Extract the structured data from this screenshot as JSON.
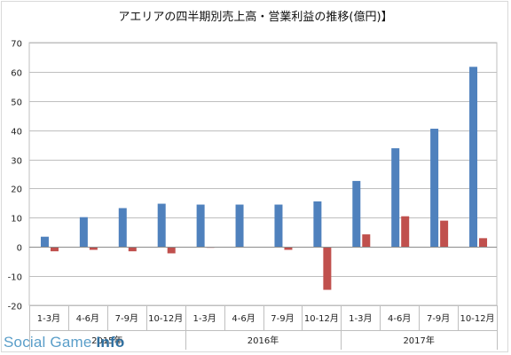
{
  "chart_data": {
    "type": "bar",
    "title": "アエリアの四半期別売上高・営業利益の推移(億円)】",
    "xlabel": "",
    "ylabel": "",
    "ylim": [
      -20,
      70
    ],
    "yticks": [
      70,
      60,
      50,
      40,
      30,
      20,
      10,
      0,
      -10,
      -20
    ],
    "grid": true,
    "legend": "none",
    "categories": [
      "1-3月",
      "4-6月",
      "7-9月",
      "10-12月",
      "1-3月",
      "4-6月",
      "7-9月",
      "10-12月",
      "1-3月",
      "4-6月",
      "7-9月",
      "10-12月"
    ],
    "year_groups": [
      {
        "label": "2015年",
        "span": 4
      },
      {
        "label": "2016年",
        "span": 4
      },
      {
        "label": "2017年",
        "span": 4
      }
    ],
    "series": [
      {
        "color": "#4f81bd",
        "values": [
          3.5,
          10.2,
          13.3,
          14.8,
          14.5,
          14.5,
          14.5,
          15.6,
          22.6,
          33.8,
          40.5,
          61.7
        ]
      },
      {
        "color": "#c0504d",
        "values": [
          -1.5,
          -1.0,
          -1.5,
          -2.2,
          -0.3,
          0.0,
          -1.0,
          -14.7,
          4.3,
          10.5,
          9.0,
          3.0
        ]
      }
    ]
  },
  "watermark": {
    "prefix": "Social Game ",
    "suffix": "Info"
  }
}
